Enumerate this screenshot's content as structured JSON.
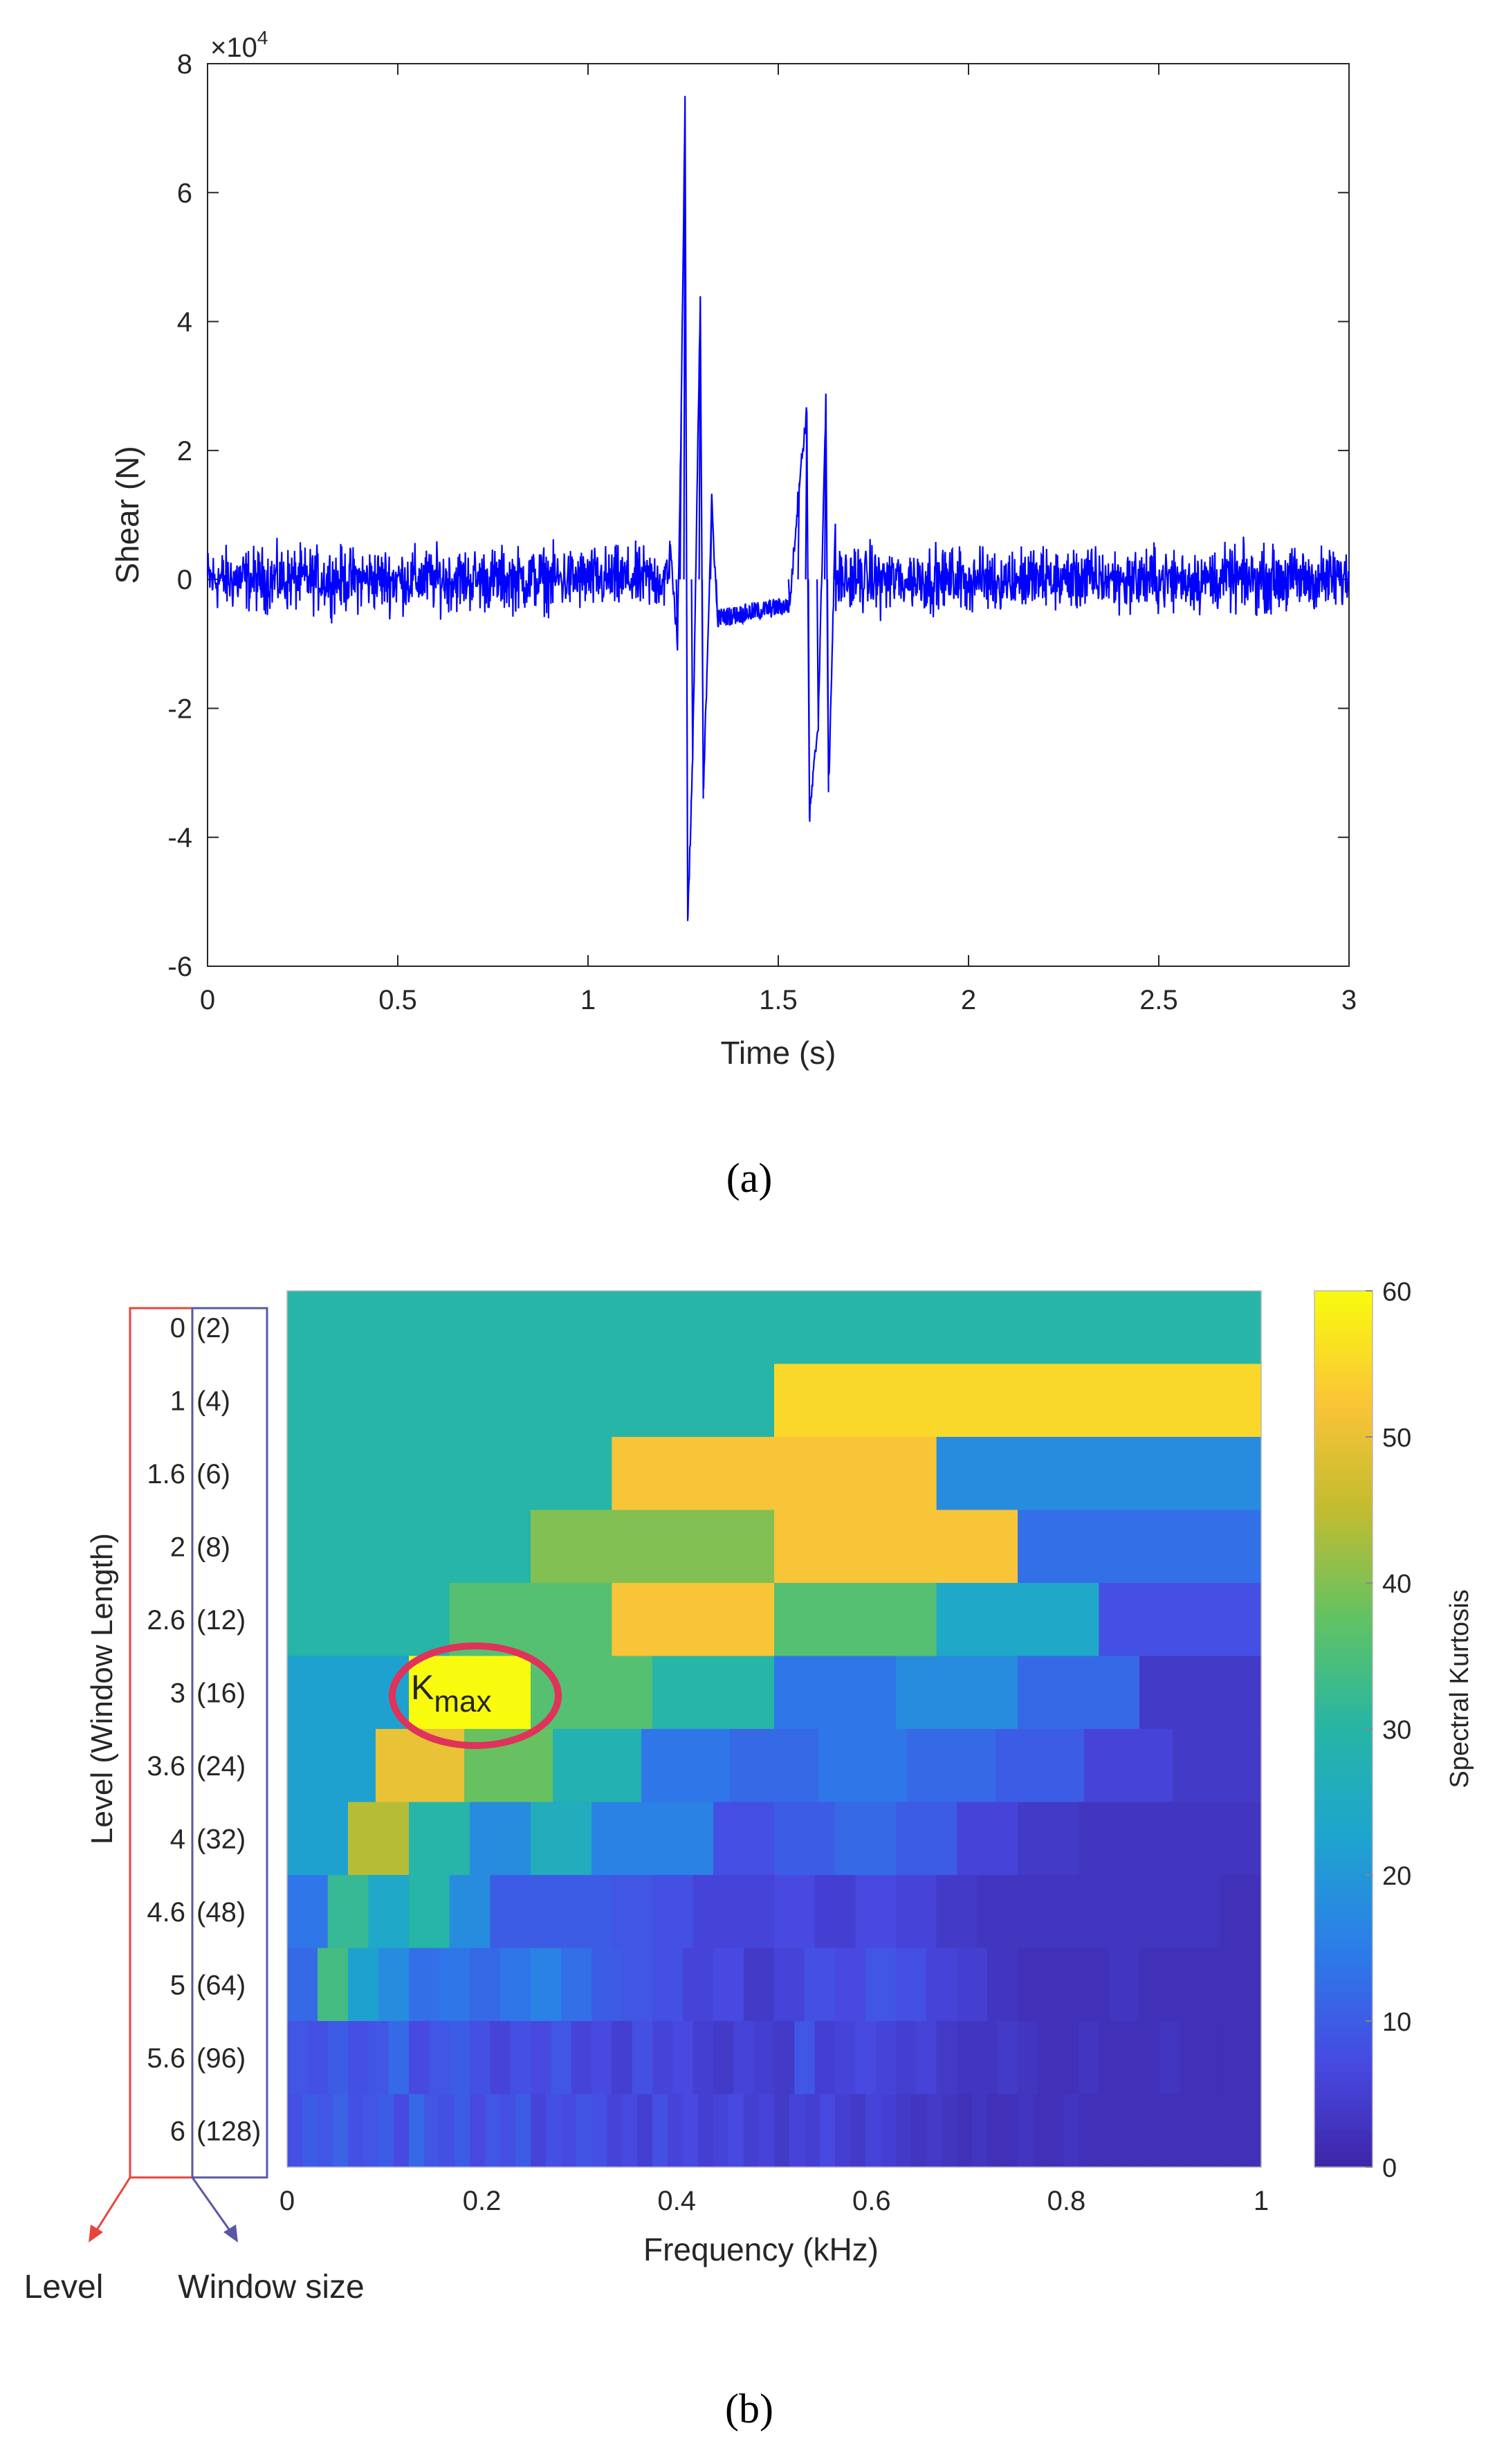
{
  "chart_data": [
    {
      "id": "a",
      "type": "line",
      "panel_label": "(a)",
      "title": "",
      "xlabel": "Time (s)",
      "ylabel": "Shear (N)",
      "xlim": [
        0,
        3
      ],
      "ylim": [
        -6,
        8
      ],
      "y_multiplier": "×10^4",
      "y_exponent_base": "×10",
      "y_exponent_power": "4",
      "xticks": [
        "0",
        "0.5",
        "1",
        "1.5",
        "2",
        "2.5",
        "3"
      ],
      "yticks": [
        "-6",
        "-4",
        "-2",
        "0",
        "2",
        "4",
        "6",
        "8"
      ],
      "line_color": "#0000ff",
      "series": [
        {
          "name": "Shear",
          "noise_amplitude": 0.45,
          "peaks": [
            {
              "t": 1.215,
              "v": 0.6
            },
            {
              "t": 1.235,
              "v": -1.0
            },
            {
              "t": 1.245,
              "v": 2.6
            },
            {
              "t": 1.255,
              "v": 7.5
            },
            {
              "t": 1.262,
              "v": -5.3
            },
            {
              "t": 1.275,
              "v": -2.8
            },
            {
              "t": 1.295,
              "v": 4.3
            },
            {
              "t": 1.303,
              "v": -3.4
            },
            {
              "t": 1.325,
              "v": 1.2
            },
            {
              "t": 1.34,
              "v": -0.6
            },
            {
              "t": 1.53,
              "v": -0.4
            },
            {
              "t": 1.555,
              "v": 1.5
            },
            {
              "t": 1.575,
              "v": 2.6
            },
            {
              "t": 1.582,
              "v": -3.7
            },
            {
              "t": 1.605,
              "v": -2.2
            },
            {
              "t": 1.625,
              "v": 2.75
            },
            {
              "t": 1.632,
              "v": -3.3
            },
            {
              "t": 1.65,
              "v": 0.8
            }
          ]
        }
      ]
    },
    {
      "id": "b",
      "type": "heatmap",
      "panel_label": "(b)",
      "title": "",
      "xlabel": "Frequency (kHz)",
      "ylabel": "Level (Window Length)",
      "colorbar_label": "Spectral Kurtosis",
      "colormap": "parula",
      "xlim": [
        0,
        1
      ],
      "clim": [
        0,
        60
      ],
      "xticks": [
        "0",
        "0.2",
        "0.4",
        "0.6",
        "0.8",
        "1"
      ],
      "colorbar_ticks": [
        "0",
        "10",
        "20",
        "30",
        "40",
        "50",
        "60"
      ],
      "levels": [
        "0",
        "1",
        "1.6",
        "2",
        "2.6",
        "3",
        "3.6",
        "4",
        "4.6",
        "5",
        "5.6",
        "6"
      ],
      "window_lengths": [
        "(2)",
        "(4)",
        "(6)",
        "(8)",
        "(12)",
        "(16)",
        "(24)",
        "(32)",
        "(48)",
        "(64)",
        "(96)",
        "(128)"
      ],
      "annotation": {
        "text": "K",
        "subscript": "max",
        "level": "3",
        "frequency_kHz": 0.19,
        "value": 60
      },
      "legend_notes": {
        "level": "Level",
        "window": "Window size"
      },
      "rows": [
        [
          30
        ],
        [
          30,
          55
        ],
        [
          30,
          52,
          18
        ],
        [
          30,
          40,
          52,
          13
        ],
        [
          30,
          36,
          52,
          36,
          24,
          8
        ],
        [
          22,
          60,
          36,
          30,
          14,
          18,
          12,
          4
        ],
        [
          22,
          50,
          38,
          28,
          14,
          12,
          14,
          12,
          10,
          6,
          4
        ],
        [
          22,
          44,
          30,
          18,
          26,
          16,
          16,
          8,
          10,
          12,
          10,
          6,
          4,
          3,
          3,
          3
        ],
        [
          14,
          32,
          24,
          30,
          18,
          10,
          10,
          10,
          9,
          8,
          6,
          6,
          7,
          5,
          7,
          6,
          4,
          3,
          3,
          3,
          3,
          3,
          3,
          2
        ],
        [
          12,
          34,
          22,
          18,
          13,
          14,
          12,
          14,
          16,
          13,
          10,
          9,
          8,
          6,
          7,
          4,
          6,
          8,
          7,
          9,
          8,
          6,
          5,
          3,
          2,
          2,
          2,
          3,
          2,
          2,
          2,
          2
        ],
        [
          9,
          8,
          10,
          8,
          9,
          12,
          7,
          9,
          10,
          8,
          6,
          8,
          7,
          9,
          6,
          7,
          5,
          8,
          6,
          7,
          5,
          4,
          6,
          5,
          4,
          9,
          5,
          6,
          7,
          6,
          5,
          6,
          4,
          3,
          3,
          4,
          3,
          2,
          2,
          3,
          2,
          2,
          2,
          3,
          2,
          2,
          2,
          2
        ],
        [
          8,
          10,
          9,
          11,
          8,
          9,
          10,
          7,
          12,
          9,
          8,
          10,
          7,
          9,
          8,
          10,
          6,
          8,
          7,
          9,
          8,
          6,
          7,
          5,
          8,
          6,
          7,
          5,
          6,
          7,
          5,
          6,
          4,
          6,
          5,
          7,
          5,
          4,
          6,
          5,
          4,
          3,
          4,
          3,
          2,
          3,
          2,
          2,
          3,
          2,
          2,
          3,
          2,
          2,
          2,
          2,
          2,
          2,
          2,
          2,
          2,
          2,
          2,
          2
        ]
      ]
    }
  ]
}
